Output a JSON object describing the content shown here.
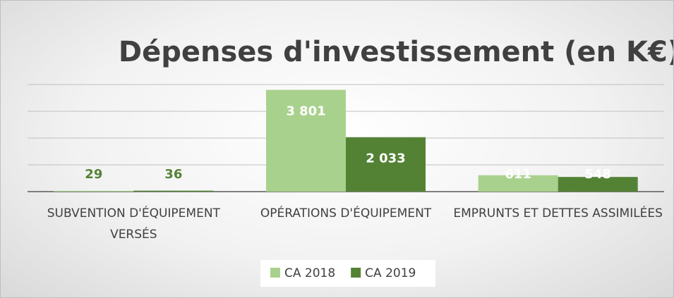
{
  "chart_data": {
    "type": "bar",
    "title": "Dépenses d'investissement (en K€)",
    "categories": [
      "SUBVENTION D'ÉQUIPEMENT VERSÉS",
      "OPÉRATIONS D'ÉQUIPEMENT",
      "EMPRUNTS ET DETTES ASSIMILÉES"
    ],
    "series": [
      {
        "name": "CA 2018",
        "color": "#a9d18e",
        "values": [
          29,
          3801,
          611
        ],
        "value_labels": [
          "29",
          "3 801",
          "611"
        ]
      },
      {
        "name": "CA 2019",
        "color": "#548235",
        "values": [
          36,
          2033,
          548
        ],
        "value_labels": [
          "36",
          "2 033",
          "548"
        ]
      }
    ],
    "ylim": [
      0,
      4000
    ],
    "yticks": [
      0,
      1000,
      2000,
      3000,
      4000
    ],
    "grid": true,
    "legend": "bottom"
  }
}
